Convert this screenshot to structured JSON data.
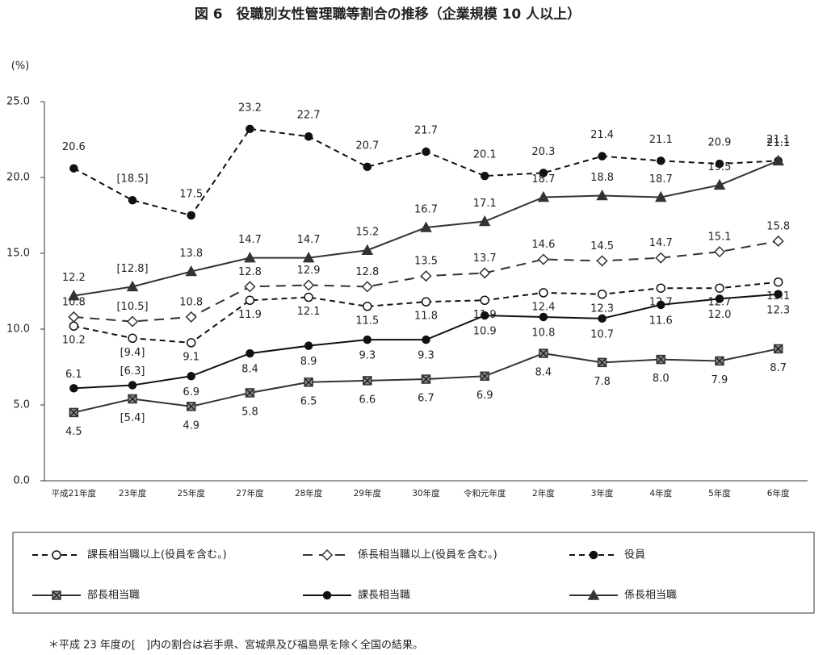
{
  "chart_data": {
    "type": "line",
    "title": "図 6　役職別女性管理職等割合の推移（企業規模 10 人以上）",
    "y_label": "(%)",
    "note": "＊平成 23 年度の[　]内の割合は岩手県、宮城県及び福島県を除く全国の結果。",
    "categories": [
      "平成21年度",
      "23年度",
      "25年度",
      "27年度",
      "28年度",
      "29年度",
      "30年度",
      "令和元年度",
      "2年度",
      "3年度",
      "4年度",
      "5年度",
      "6年度"
    ],
    "ylim": [
      0,
      25
    ],
    "yticks": [
      {
        "value": 0,
        "label": "0.0"
      },
      {
        "value": 5,
        "label": "5.0"
      },
      {
        "value": 10,
        "label": "10.0"
      },
      {
        "value": 15,
        "label": "15.0"
      },
      {
        "value": 20,
        "label": "20.0"
      },
      {
        "value": 25,
        "label": "25.0"
      }
    ],
    "series": [
      {
        "name": "課長相当職以上(役員を含む。)",
        "color": "#111111",
        "line_style": "dashed",
        "marker": "circle-open",
        "values": [
          10.2,
          9.4,
          9.1,
          11.9,
          12.1,
          11.5,
          11.8,
          11.9,
          12.4,
          12.3,
          12.7,
          12.7,
          13.1
        ],
        "value_labels": [
          "10.2",
          "[9.4]",
          "9.1",
          "11.9",
          "12.1",
          "11.5",
          "11.8",
          "11.9",
          "12.4",
          "12.3",
          "12.7",
          "12.7",
          "13.1"
        ]
      },
      {
        "name": "係長相当職以上(役員を含む。)",
        "color": "#333333",
        "line_style": "long-dashed",
        "marker": "diamond-open",
        "values": [
          10.8,
          10.5,
          10.8,
          12.8,
          12.9,
          12.8,
          13.5,
          13.7,
          14.6,
          14.5,
          14.7,
          15.1,
          15.8
        ],
        "value_labels": [
          "10.8",
          "[10.5]",
          "10.8",
          "12.8",
          "12.9",
          "12.8",
          "13.5",
          "13.7",
          "14.6",
          "14.5",
          "14.7",
          "15.1",
          "15.8"
        ]
      },
      {
        "name": "役員",
        "color": "#111111",
        "line_style": "dashed",
        "marker": "dot",
        "values": [
          20.6,
          18.5,
          17.5,
          23.2,
          22.7,
          20.7,
          21.7,
          20.1,
          20.3,
          21.4,
          21.1,
          20.9,
          21.1
        ],
        "value_labels": [
          "20.6",
          "[18.5]",
          "17.5",
          "23.2",
          "22.7",
          "20.7",
          "21.7",
          "20.1",
          "20.3",
          "21.4",
          "21.1",
          "20.9",
          "21.1"
        ]
      },
      {
        "name": "部長相当職",
        "color": "#333333",
        "line_style": "solid",
        "marker": "square-x",
        "values": [
          4.5,
          5.4,
          4.9,
          5.8,
          6.5,
          6.6,
          6.7,
          6.9,
          8.4,
          7.8,
          8.0,
          7.9,
          8.7
        ],
        "value_labels": [
          "4.5",
          "[5.4]",
          "4.9",
          "5.8",
          "6.5",
          "6.6",
          "6.7",
          "6.9",
          "8.4",
          "7.8",
          "8.0",
          "7.9",
          "8.7"
        ]
      },
      {
        "name": "課長相当職",
        "color": "#111111",
        "line_style": "solid",
        "marker": "dot",
        "values": [
          6.1,
          6.3,
          6.9,
          8.4,
          8.9,
          9.3,
          9.3,
          10.9,
          10.8,
          10.7,
          11.6,
          12.0,
          12.3
        ],
        "value_labels": [
          "6.1",
          "[6.3]",
          "6.9",
          "8.4",
          "8.9",
          "9.3",
          "9.3",
          "10.9",
          "10.8",
          "10.7",
          "11.6",
          "12.0",
          "12.3"
        ]
      },
      {
        "name": "係長相当職",
        "color": "#333333",
        "line_style": "solid",
        "marker": "triangle",
        "values": [
          12.2,
          12.8,
          13.8,
          14.7,
          14.7,
          15.2,
          16.7,
          17.1,
          18.7,
          18.8,
          18.7,
          19.5,
          21.1
        ],
        "value_labels": [
          "12.2",
          "[12.8]",
          "13.8",
          "14.7",
          "14.7",
          "15.2",
          "16.7",
          "17.1",
          "18.7",
          "18.8",
          "18.7",
          "19.5",
          "21.1"
        ]
      }
    ]
  }
}
